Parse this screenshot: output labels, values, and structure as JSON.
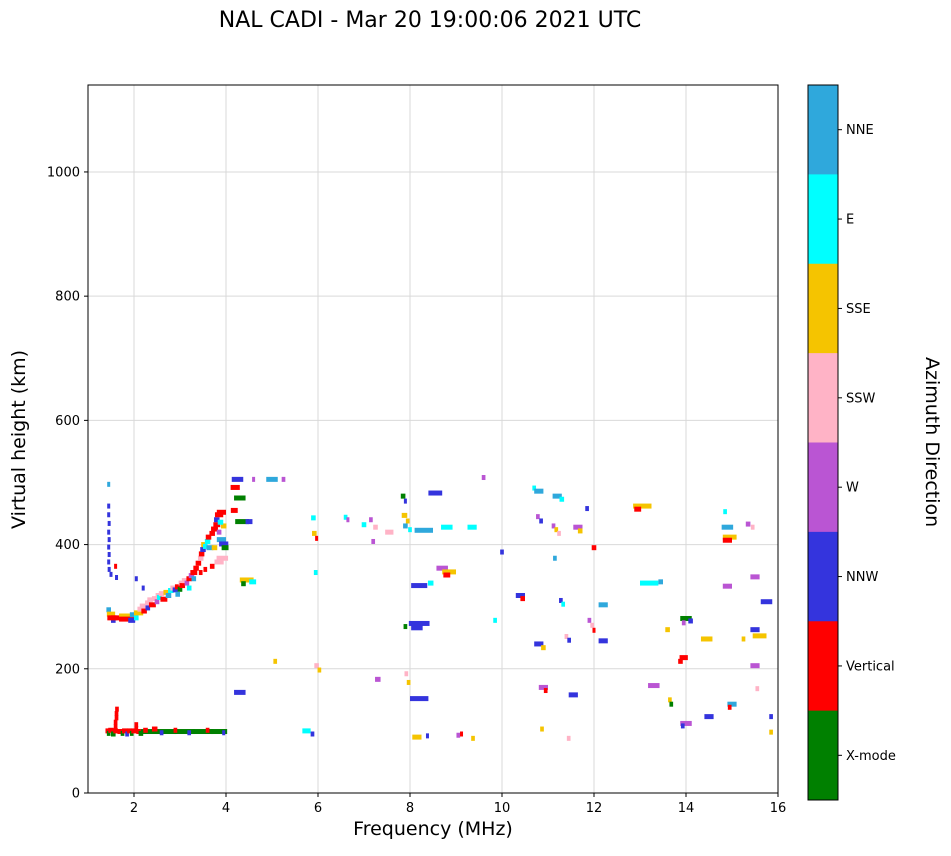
{
  "title": "NAL CADI - Mar 20 19:00:06 2021 UTC",
  "chart_data": {
    "type": "scatter",
    "title": "NAL CADI - Mar 20 19:00:06 2021 UTC",
    "xlabel": "Frequency (MHz)",
    "ylabel": "Virtual height (km)",
    "xlim": [
      1,
      16
    ],
    "ylim": [
      0,
      1140
    ],
    "xticks": [
      2,
      4,
      6,
      8,
      10,
      12,
      14,
      16
    ],
    "yticks": [
      0,
      200,
      400,
      600,
      800,
      1000
    ],
    "grid": true,
    "colorbar": {
      "label": "Azimuth Direction",
      "categories": [
        {
          "label": "NNE",
          "color": "#2FA8DC"
        },
        {
          "label": "E",
          "color": "#00FFFF"
        },
        {
          "label": "SSE",
          "color": "#F5C400"
        },
        {
          "label": "SSW",
          "color": "#FFB3C6"
        },
        {
          "label": "W",
          "color": "#BA55D3"
        },
        {
          "label": "NNW",
          "color": "#3434DD"
        },
        {
          "label": "Vertical",
          "color": "#FF0000"
        },
        {
          "label": "X-mode",
          "color": "#008000"
        }
      ]
    },
    "points_format": [
      "freq_mhz",
      "height_km",
      "azimuth_category",
      "width_mhz"
    ],
    "points": [
      [
        2.3,
        99,
        "X-mode",
        0.45
      ],
      [
        2.7,
        99,
        "X-mode",
        0.45
      ],
      [
        3.1,
        99,
        "X-mode",
        0.45
      ],
      [
        3.5,
        99,
        "X-mode",
        0.45
      ],
      [
        3.85,
        99,
        "X-mode",
        0.35
      ],
      [
        2.25,
        101,
        "Vertical",
        0.1
      ],
      [
        2.45,
        103,
        "Vertical",
        0.12
      ],
      [
        2.6,
        97,
        "NNW",
        0.08
      ],
      [
        2.9,
        101,
        "Vertical",
        0.08
      ],
      [
        3.2,
        97,
        "NNW",
        0.08
      ],
      [
        3.6,
        101,
        "Vertical",
        0.08
      ],
      [
        3.95,
        97,
        "NNW",
        0.06
      ],
      [
        1.42,
        100,
        "Vertical",
        0.08
      ],
      [
        1.45,
        96,
        "X-mode",
        0.08
      ],
      [
        1.5,
        101,
        "Vertical",
        0.12
      ],
      [
        1.55,
        95,
        "X-mode",
        0.1
      ],
      [
        1.6,
        100,
        "Vertical",
        0.1
      ],
      [
        1.6,
        107,
        "Vertical",
        0.08
      ],
      [
        1.6,
        114,
        "Vertical",
        0.08
      ],
      [
        1.62,
        121,
        "Vertical",
        0.08
      ],
      [
        1.62,
        128,
        "Vertical",
        0.08
      ],
      [
        1.63,
        135,
        "Vertical",
        0.08
      ],
      [
        1.7,
        99,
        "Vertical",
        0.12
      ],
      [
        1.75,
        96,
        "X-mode",
        0.08
      ],
      [
        1.8,
        100,
        "Vertical",
        0.12
      ],
      [
        1.85,
        95,
        "NNW",
        0.08
      ],
      [
        1.9,
        100,
        "Vertical",
        0.1
      ],
      [
        1.95,
        96,
        "X-mode",
        0.08
      ],
      [
        2.0,
        100,
        "Vertical",
        0.12
      ],
      [
        2.05,
        104,
        "Vertical",
        0.08
      ],
      [
        2.05,
        110,
        "Vertical",
        0.08
      ],
      [
        2.1,
        99,
        "Vertical",
        0.1
      ],
      [
        2.15,
        96,
        "X-mode",
        0.1
      ],
      [
        1.45,
        295,
        "NNE",
        0.1
      ],
      [
        1.5,
        288,
        "SSE",
        0.18
      ],
      [
        1.52,
        282,
        "Vertical",
        0.2
      ],
      [
        1.55,
        278,
        "NNW",
        0.1
      ],
      [
        1.65,
        282,
        "Vertical",
        0.3
      ],
      [
        1.8,
        285,
        "SSE",
        0.25
      ],
      [
        1.85,
        280,
        "Vertical",
        0.35
      ],
      [
        1.95,
        278,
        "NNW",
        0.15
      ],
      [
        2.0,
        287,
        "NNE",
        0.18
      ],
      [
        2.05,
        282,
        "E",
        0.1
      ],
      [
        2.1,
        290,
        "SSE",
        0.2
      ],
      [
        2.15,
        296,
        "SSW",
        0.15
      ],
      [
        2.2,
        301,
        "SSW",
        0.15
      ],
      [
        2.22,
        293,
        "Vertical",
        0.12
      ],
      [
        2.3,
        306,
        "SSW",
        0.12
      ],
      [
        2.3,
        298,
        "NNW",
        0.1
      ],
      [
        2.35,
        311,
        "SSW",
        0.12
      ],
      [
        2.4,
        303,
        "Vertical",
        0.15
      ],
      [
        2.45,
        313,
        "SSW",
        0.12
      ],
      [
        2.5,
        308,
        "W",
        0.1
      ],
      [
        2.52,
        318,
        "SSW",
        0.1
      ],
      [
        2.55,
        315,
        "E",
        0.1
      ],
      [
        2.6,
        321,
        "SSW",
        0.12
      ],
      [
        2.65,
        312,
        "Vertical",
        0.15
      ],
      [
        2.7,
        323,
        "SSE",
        0.12
      ],
      [
        2.75,
        318,
        "NNE",
        0.12
      ],
      [
        2.8,
        326,
        "E",
        0.12
      ],
      [
        2.85,
        330,
        "SSW",
        0.12
      ],
      [
        2.9,
        327,
        "NNW",
        0.12
      ],
      [
        2.95,
        332,
        "Vertical",
        0.12
      ],
      [
        3.0,
        328,
        "X-mode",
        0.1
      ],
      [
        3.02,
        338,
        "SSW",
        0.1
      ],
      [
        3.05,
        334,
        "Vertical",
        0.12
      ],
      [
        3.1,
        342,
        "SSW",
        0.12
      ],
      [
        3.15,
        338,
        "W",
        0.1
      ],
      [
        3.2,
        345,
        "Vertical",
        0.12
      ],
      [
        3.25,
        350,
        "W",
        0.12
      ],
      [
        3.3,
        355,
        "Vertical",
        0.15
      ],
      [
        3.3,
        345,
        "NNE",
        0.1
      ],
      [
        3.35,
        362,
        "Vertical",
        0.12
      ],
      [
        3.4,
        370,
        "Vertical",
        0.12
      ],
      [
        3.45,
        378,
        "SSW",
        0.12
      ],
      [
        3.47,
        385,
        "Vertical",
        0.12
      ],
      [
        3.5,
        392,
        "NNW",
        0.12
      ],
      [
        3.52,
        400,
        "SSE",
        0.12
      ],
      [
        3.55,
        397,
        "E",
        0.1
      ],
      [
        3.6,
        405,
        "E",
        0.12
      ],
      [
        3.62,
        412,
        "Vertical",
        0.12
      ],
      [
        3.65,
        395,
        "NNE",
        0.15
      ],
      [
        3.7,
        418,
        "Vertical",
        0.12
      ],
      [
        3.75,
        425,
        "Vertical",
        0.15
      ],
      [
        3.8,
        432,
        "Vertical",
        0.15
      ],
      [
        3.8,
        440,
        "NNW",
        0.12
      ],
      [
        3.85,
        448,
        "Vertical",
        0.18
      ],
      [
        3.9,
        452,
        "Vertical",
        0.2
      ],
      [
        3.9,
        408,
        "NNE",
        0.2
      ],
      [
        3.95,
        401,
        "NNW",
        0.2
      ],
      [
        3.92,
        378,
        "SSW",
        0.25
      ],
      [
        3.85,
        372,
        "SSW",
        0.2
      ],
      [
        3.85,
        420,
        "W",
        0.1
      ],
      [
        3.7,
        365,
        "Vertical",
        0.1
      ],
      [
        3.55,
        360,
        "Vertical",
        0.08
      ],
      [
        3.45,
        355,
        "Vertical",
        0.08
      ],
      [
        3.2,
        330,
        "E",
        0.1
      ],
      [
        2.95,
        320,
        "NNE",
        0.1
      ],
      [
        3.75,
        395,
        "SSE",
        0.12
      ],
      [
        3.98,
        395,
        "X-mode",
        0.15
      ],
      [
        3.95,
        430,
        "SSE",
        0.12
      ],
      [
        3.88,
        436,
        "E",
        0.12
      ],
      [
        1.45,
        497,
        "NNE",
        0.06
      ],
      [
        1.45,
        462,
        "NNW",
        0.06
      ],
      [
        1.45,
        448,
        "NNW",
        0.06
      ],
      [
        1.46,
        434,
        "NNW",
        0.06
      ],
      [
        1.45,
        420,
        "NNW",
        0.06
      ],
      [
        1.46,
        408,
        "NNW",
        0.06
      ],
      [
        1.45,
        396,
        "NNW",
        0.06
      ],
      [
        1.46,
        384,
        "NNW",
        0.06
      ],
      [
        1.45,
        372,
        "NNW",
        0.06
      ],
      [
        1.46,
        360,
        "NNW",
        0.06
      ],
      [
        1.5,
        352,
        "NNW",
        0.06
      ],
      [
        1.6,
        365,
        "Vertical",
        0.06
      ],
      [
        1.62,
        347,
        "NNW",
        0.06
      ],
      [
        2.05,
        345,
        "NNW",
        0.06
      ],
      [
        2.2,
        330,
        "NNW",
        0.06
      ],
      [
        4.25,
        505,
        "NNW",
        0.25
      ],
      [
        4.2,
        492,
        "Vertical",
        0.2
      ],
      [
        4.3,
        475,
        "X-mode",
        0.25
      ],
      [
        4.18,
        455,
        "Vertical",
        0.15
      ],
      [
        4.35,
        437,
        "X-mode",
        0.3
      ],
      [
        4.5,
        437,
        "NNW",
        0.15
      ],
      [
        4.45,
        343,
        "SSE",
        0.3
      ],
      [
        4.58,
        340,
        "E",
        0.15
      ],
      [
        4.38,
        337,
        "X-mode",
        0.1
      ],
      [
        4.3,
        162,
        "NNW",
        0.25
      ],
      [
        4.6,
        505,
        "W",
        0.06
      ],
      [
        5.0,
        505,
        "NNE",
        0.25
      ],
      [
        5.25,
        505,
        "W",
        0.08
      ],
      [
        5.07,
        212,
        "SSE",
        0.08
      ],
      [
        5.75,
        100,
        "E",
        0.18
      ],
      [
        5.88,
        95,
        "NNW",
        0.08
      ],
      [
        5.9,
        443,
        "E",
        0.1
      ],
      [
        5.92,
        418,
        "SSE",
        0.1
      ],
      [
        5.97,
        410,
        "Vertical",
        0.06
      ],
      [
        5.95,
        355,
        "E",
        0.08
      ],
      [
        5.97,
        205,
        "SSW",
        0.1
      ],
      [
        6.03,
        198,
        "SSE",
        0.08
      ],
      [
        6.6,
        444,
        "E",
        0.08
      ],
      [
        6.65,
        440,
        "W",
        0.06
      ],
      [
        7.0,
        432,
        "E",
        0.1
      ],
      [
        7.15,
        440,
        "W",
        0.08
      ],
      [
        7.25,
        428,
        "SSW",
        0.1
      ],
      [
        7.2,
        405,
        "W",
        0.08
      ],
      [
        7.3,
        183,
        "W",
        0.12
      ],
      [
        7.55,
        420,
        "SSW",
        0.18
      ],
      [
        7.85,
        478,
        "X-mode",
        0.1
      ],
      [
        7.9,
        470,
        "NNW",
        0.06
      ],
      [
        7.88,
        447,
        "SSE",
        0.12
      ],
      [
        7.95,
        438,
        "SSE",
        0.08
      ],
      [
        7.9,
        430,
        "NNE",
        0.1
      ],
      [
        8.0,
        424,
        "E",
        0.08
      ],
      [
        7.9,
        268,
        "X-mode",
        0.08
      ],
      [
        7.92,
        192,
        "SSW",
        0.08
      ],
      [
        7.97,
        178,
        "SSE",
        0.08
      ],
      [
        8.3,
        423,
        "NNE",
        0.4
      ],
      [
        8.2,
        334,
        "NNW",
        0.35
      ],
      [
        8.45,
        338,
        "E",
        0.12
      ],
      [
        8.2,
        273,
        "NNW",
        0.45
      ],
      [
        8.15,
        266,
        "NNW",
        0.25
      ],
      [
        8.2,
        152,
        "NNW",
        0.4
      ],
      [
        8.15,
        90,
        "SSE",
        0.2
      ],
      [
        8.38,
        92,
        "NNW",
        0.06
      ],
      [
        8.55,
        483,
        "NNW",
        0.3
      ],
      [
        8.8,
        428,
        "E",
        0.25
      ],
      [
        8.7,
        362,
        "W",
        0.25
      ],
      [
        8.85,
        356,
        "SSE",
        0.3
      ],
      [
        8.8,
        351,
        "Vertical",
        0.15
      ],
      [
        9.05,
        93,
        "W",
        0.08
      ],
      [
        9.12,
        95,
        "Vertical",
        0.06
      ],
      [
        9.35,
        428,
        "E",
        0.2
      ],
      [
        9.37,
        88,
        "SSE",
        0.08
      ],
      [
        9.6,
        508,
        "W",
        0.08
      ],
      [
        9.85,
        278,
        "E",
        0.08
      ],
      [
        10.0,
        388,
        "NNW",
        0.08
      ],
      [
        10.4,
        318,
        "NNW",
        0.2
      ],
      [
        10.45,
        313,
        "Vertical",
        0.1
      ],
      [
        10.7,
        491,
        "E",
        0.08
      ],
      [
        10.8,
        486,
        "NNE",
        0.2
      ],
      [
        10.78,
        445,
        "W",
        0.08
      ],
      [
        10.85,
        438,
        "NNW",
        0.08
      ],
      [
        10.8,
        240,
        "NNW",
        0.2
      ],
      [
        10.9,
        234,
        "SSE",
        0.1
      ],
      [
        10.9,
        170,
        "W",
        0.2
      ],
      [
        10.95,
        165,
        "Vertical",
        0.08
      ],
      [
        10.87,
        103,
        "SSE",
        0.08
      ],
      [
        11.2,
        478,
        "NNE",
        0.2
      ],
      [
        11.3,
        473,
        "E",
        0.1
      ],
      [
        11.12,
        430,
        "W",
        0.08
      ],
      [
        11.18,
        424,
        "SSE",
        0.08
      ],
      [
        11.24,
        418,
        "SSW",
        0.08
      ],
      [
        11.15,
        378,
        "NNE",
        0.08
      ],
      [
        11.28,
        310,
        "NNW",
        0.08
      ],
      [
        11.33,
        304,
        "E",
        0.08
      ],
      [
        11.4,
        252,
        "SSW",
        0.08
      ],
      [
        11.46,
        246,
        "NNW",
        0.08
      ],
      [
        11.55,
        158,
        "NNW",
        0.2
      ],
      [
        11.45,
        88,
        "SSW",
        0.08
      ],
      [
        11.65,
        428,
        "W",
        0.2
      ],
      [
        11.7,
        422,
        "SSE",
        0.1
      ],
      [
        11.85,
        458,
        "NNW",
        0.08
      ],
      [
        11.9,
        278,
        "W",
        0.08
      ],
      [
        11.96,
        270,
        "SSW",
        0.08
      ],
      [
        12.0,
        262,
        "Vertical",
        0.06
      ],
      [
        12.0,
        395,
        "Vertical",
        0.1
      ],
      [
        12.2,
        303,
        "NNE",
        0.2
      ],
      [
        12.2,
        245,
        "NNW",
        0.2
      ],
      [
        13.05,
        462,
        "SSE",
        0.4
      ],
      [
        12.95,
        457,
        "Vertical",
        0.15
      ],
      [
        13.2,
        338,
        "E",
        0.4
      ],
      [
        13.45,
        340,
        "NNE",
        0.1
      ],
      [
        13.3,
        173,
        "W",
        0.25
      ],
      [
        13.6,
        263,
        "SSE",
        0.1
      ],
      [
        13.65,
        150,
        "SSE",
        0.08
      ],
      [
        13.68,
        143,
        "X-mode",
        0.08
      ],
      [
        14.0,
        281,
        "X-mode",
        0.25
      ],
      [
        14.1,
        277,
        "NNW",
        0.1
      ],
      [
        13.95,
        274,
        "W",
        0.08
      ],
      [
        13.95,
        218,
        "Vertical",
        0.18
      ],
      [
        13.88,
        212,
        "Vertical",
        0.1
      ],
      [
        14.0,
        112,
        "W",
        0.25
      ],
      [
        13.93,
        108,
        "NNW",
        0.08
      ],
      [
        14.45,
        248,
        "SSE",
        0.25
      ],
      [
        14.5,
        123,
        "NNW",
        0.2
      ],
      [
        14.85,
        453,
        "E",
        0.08
      ],
      [
        14.9,
        428,
        "NNE",
        0.25
      ],
      [
        14.95,
        412,
        "SSE",
        0.3
      ],
      [
        14.9,
        407,
        "Vertical",
        0.2
      ],
      [
        14.9,
        333,
        "W",
        0.2
      ],
      [
        15.0,
        143,
        "NNE",
        0.2
      ],
      [
        14.95,
        138,
        "Vertical",
        0.08
      ],
      [
        15.25,
        248,
        "SSE",
        0.08
      ],
      [
        15.35,
        433,
        "W",
        0.1
      ],
      [
        15.45,
        428,
        "SSW",
        0.08
      ],
      [
        15.5,
        348,
        "W",
        0.2
      ],
      [
        15.5,
        263,
        "NNW",
        0.2
      ],
      [
        15.6,
        253,
        "SSE",
        0.3
      ],
      [
        15.5,
        205,
        "W",
        0.2
      ],
      [
        15.55,
        168,
        "SSW",
        0.08
      ],
      [
        15.75,
        308,
        "NNW",
        0.25
      ],
      [
        15.85,
        123,
        "NNW",
        0.08
      ],
      [
        15.85,
        98,
        "SSE",
        0.08
      ]
    ]
  }
}
